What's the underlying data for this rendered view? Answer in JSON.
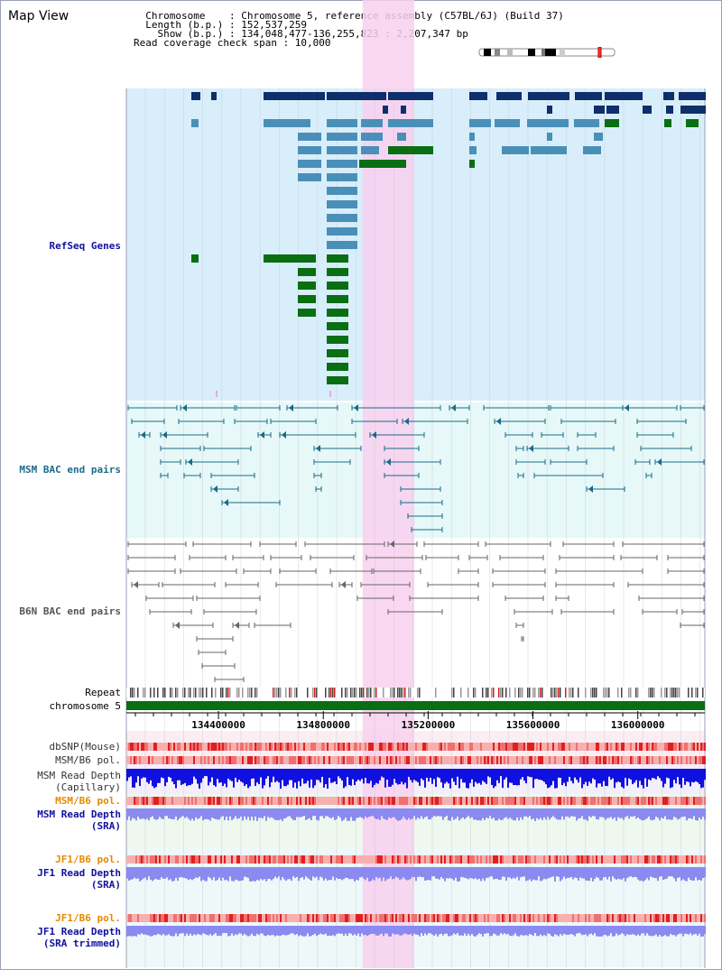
{
  "header": {
    "title": "Map View",
    "info_lines": [
      "  Chromosome    : Chromosome 5, reference assembly (C57BL/6J) (Build 37)",
      "  Length (b.p.) : 152,537,259",
      "    Show (b.p.) : 134,048,477-136,255,823 : 2,207,347 bp",
      "Read coverage check span : 10,000"
    ]
  },
  "view": {
    "start": 134048477,
    "end": 136255823,
    "highlight_start": 134950000,
    "highlight_end": 135147000
  },
  "tracks": {
    "refseq": {
      "label": "RefSeq Genes",
      "color": "#1010a0"
    },
    "msm_bac": {
      "label": "MSM BAC end pairs",
      "color": "#1a6b8a"
    },
    "b6n_bac": {
      "label": "B6N BAC end pairs",
      "color": "#555555"
    },
    "repeat": {
      "label": "Repeat"
    },
    "chromosome": {
      "label": "chromosome 5"
    },
    "dbsnp": {
      "label": "dbSNP(Mouse)"
    },
    "msm_b6_pol": {
      "label": "MSM/B6 pol."
    },
    "msm_read_depth_cap": {
      "line1": "MSM Read Depth",
      "line2": "(Capillary)"
    },
    "msm_b6_pol_sra": {
      "label": "MSM/B6 pol.",
      "color": "#e68a00"
    },
    "msm_read_depth_sra": {
      "line1": "MSM Read Depth",
      "line2": "(SRA)",
      "color": "#1010a0"
    },
    "jf1_b6_pol": {
      "label": "JF1/B6 pol.",
      "color": "#e68a00"
    },
    "jf1_read_depth_sra": {
      "line1": "JF1 Read Depth",
      "line2": "(SRA)",
      "color": "#1010a0"
    },
    "jf1_b6_pol_trim": {
      "label": "JF1/B6 pol.",
      "color": "#e68a00"
    },
    "jf1_read_depth_trim": {
      "line1": "JF1 Read Depth",
      "line2": "(SRA trimmed)",
      "color": "#1010a0"
    }
  },
  "axis": {
    "ticks": [
      134400000,
      134800000,
      135200000,
      135600000,
      136000000
    ],
    "tick_labels": [
      "134400000",
      "134800000",
      "135200000",
      "135600000",
      "136000000"
    ]
  },
  "colors": {
    "refseq_dark": "#0e2f6b",
    "refseq_mid": "#4a8fb8",
    "refseq_green": "#0a6e12",
    "highlight": "#f8d0ee",
    "refseq_bg": "#d8eefa",
    "bac_bg": "#e6f8f8",
    "chromosome": "#0a6e12",
    "snp_high": "#e02020",
    "snp_low": "#f6b0b0",
    "depth_cap": "#1010e0",
    "depth_sra": "#8a8af0"
  }
}
